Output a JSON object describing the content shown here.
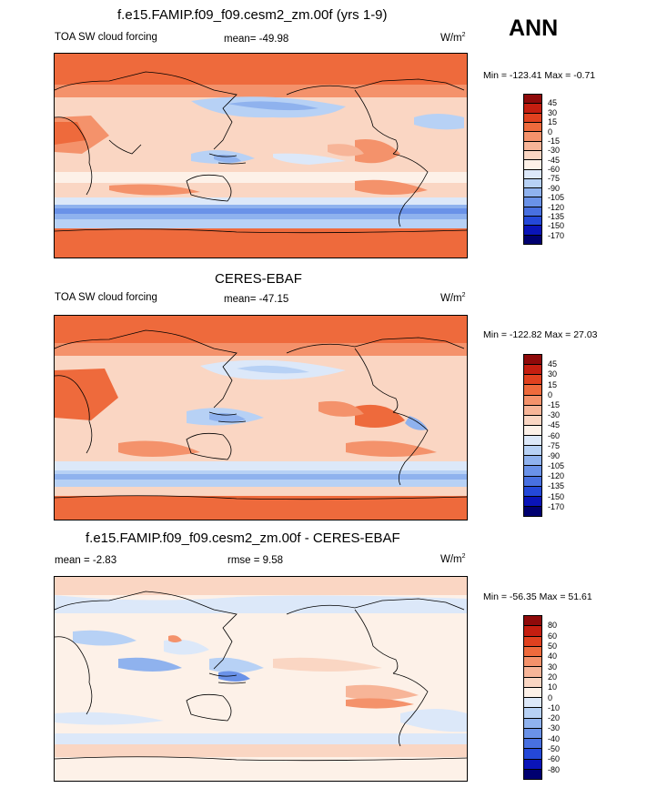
{
  "season": "ANN",
  "units_base": "W/m",
  "units_exp": "2",
  "panels": [
    {
      "title": "f.e15.FAMIP.f09_f09.cesm2_zm.00f (yrs 1-9)",
      "left_label": "TOA SW cloud forcing",
      "center_label": "mean= -49.98",
      "minmax": "Min = -123.41 Max =  -0.71",
      "levels": [
        "45",
        "30",
        "15",
        "0",
        "-15",
        "-30",
        "-45",
        "-60",
        "-75",
        "-90",
        "-105",
        "-120",
        "-135",
        "-150",
        "-170"
      ],
      "colors": [
        "#8f0a0a",
        "#c41e10",
        "#e0411f",
        "#ee6a3c",
        "#f4926b",
        "#f7b598",
        "#fad6c3",
        "#fdf1e8",
        "#dce8f9",
        "#b7d1f5",
        "#8fb2ee",
        "#6a92e8",
        "#4870e0",
        "#2448d8",
        "#0a14b8",
        "#000070"
      ]
    },
    {
      "title": "CERES-EBAF",
      "left_label": "TOA SW cloud forcing",
      "center_label": "mean= -47.15",
      "minmax": "Min = -122.82 Max =  27.03",
      "levels": [
        "45",
        "30",
        "15",
        "0",
        "-15",
        "-30",
        "-45",
        "-60",
        "-75",
        "-90",
        "-105",
        "-120",
        "-135",
        "-150",
        "-170"
      ],
      "colors": [
        "#8f0a0a",
        "#c41e10",
        "#e0411f",
        "#ee6a3c",
        "#f4926b",
        "#f7b598",
        "#fad6c3",
        "#fdf1e8",
        "#dce8f9",
        "#b7d1f5",
        "#8fb2ee",
        "#6a92e8",
        "#4870e0",
        "#2448d8",
        "#0a14b8",
        "#000070"
      ]
    },
    {
      "title": "f.e15.FAMIP.f09_f09.cesm2_zm.00f - CERES-EBAF",
      "left_label": "mean =  -2.83",
      "center_label": "rmse =   9.58",
      "minmax": "Min = -56.35 Max =  51.61",
      "levels": [
        "80",
        "60",
        "50",
        "40",
        "30",
        "20",
        "10",
        "0",
        "-10",
        "-20",
        "-30",
        "-40",
        "-50",
        "-60",
        "-80"
      ],
      "colors": [
        "#8f0a0a",
        "#c41e10",
        "#e0411f",
        "#ee6a3c",
        "#f4926b",
        "#f7b598",
        "#fad6c3",
        "#fdf1e8",
        "#dce8f9",
        "#b7d1f5",
        "#8fb2ee",
        "#6a92e8",
        "#4870e0",
        "#2448d8",
        "#0a14b8",
        "#000070"
      ]
    }
  ],
  "chart_data": [
    {
      "type": "heatmap",
      "title": "f.e15.FAMIP.f09_f09.cesm2_zm.00f (yrs 1-9)",
      "variable": "TOA SW cloud forcing",
      "units": "W/m^2",
      "mean": -49.98,
      "min": -123.41,
      "max": -0.71,
      "projection": "global cylindrical equidistant, Pacific-centered",
      "contour_levels": [
        -170,
        -150,
        -135,
        -120,
        -105,
        -90,
        -75,
        -60,
        -45,
        -30,
        -15,
        0,
        15,
        30,
        45
      ]
    },
    {
      "type": "heatmap",
      "title": "CERES-EBAF",
      "variable": "TOA SW cloud forcing",
      "units": "W/m^2",
      "mean": -47.15,
      "min": -122.82,
      "max": 27.03,
      "projection": "global cylindrical equidistant, Pacific-centered",
      "contour_levels": [
        -170,
        -150,
        -135,
        -120,
        -105,
        -90,
        -75,
        -60,
        -45,
        -30,
        -15,
        0,
        15,
        30,
        45
      ]
    },
    {
      "type": "heatmap",
      "title": "f.e15.FAMIP.f09_f09.cesm2_zm.00f - CERES-EBAF",
      "variable": "difference",
      "units": "W/m^2",
      "mean": -2.83,
      "rmse": 9.58,
      "min": -56.35,
      "max": 51.61,
      "projection": "global cylindrical equidistant, Pacific-centered",
      "contour_levels": [
        -80,
        -60,
        -50,
        -40,
        -30,
        -20,
        -10,
        0,
        10,
        20,
        30,
        40,
        50,
        60,
        80
      ]
    }
  ]
}
